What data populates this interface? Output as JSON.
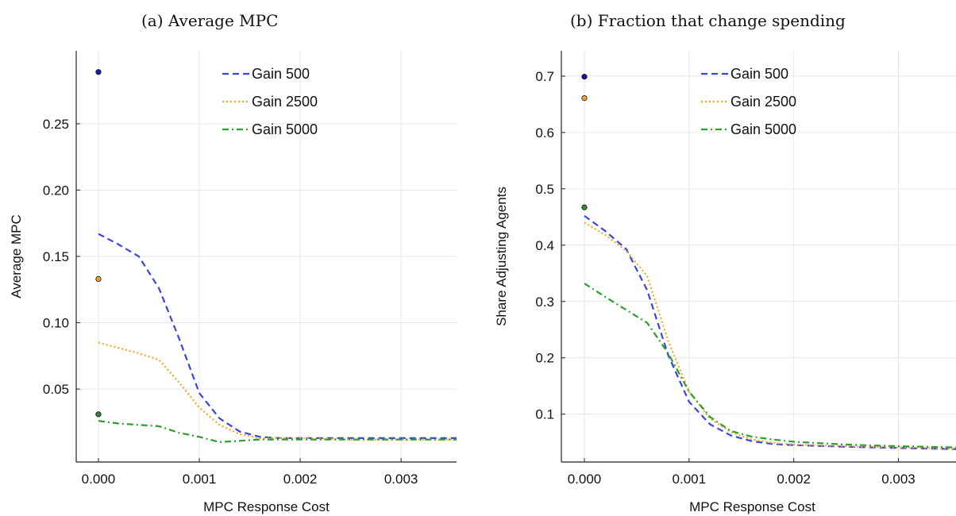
{
  "chart_data": [
    {
      "type": "line",
      "title": "(a) Average MPC",
      "xlabel": "MPC Response Cost",
      "ylabel": "Average MPC",
      "xlim": [
        -0.00022,
        0.00355
      ],
      "ylim": [
        -0.005,
        0.305
      ],
      "xticks": [
        0,
        0.001,
        0.002,
        0.003
      ],
      "xtick_labels": [
        "0.000",
        "0.001",
        "0.002",
        "0.003"
      ],
      "yticks": [
        0.05,
        0.1,
        0.15,
        0.2,
        0.25
      ],
      "ytick_labels": [
        "0.05",
        "0.10",
        "0.15",
        "0.20",
        "0.25"
      ],
      "grid": true,
      "legend": "top-center",
      "series": [
        {
          "name": "Gain 500",
          "color": "#3a45e0",
          "dash": "dashed",
          "x": [
            0,
            0.0002,
            0.0004,
            0.0006,
            0.0008,
            0.001,
            0.0012,
            0.0014,
            0.0016,
            0.0018,
            0.002,
            0.0025,
            0.003,
            0.00355
          ],
          "y": [
            0.167,
            0.159,
            0.15,
            0.126,
            0.088,
            0.047,
            0.028,
            0.018,
            0.014,
            0.013,
            0.013,
            0.013,
            0.013,
            0.013
          ],
          "marker": {
            "x": 0,
            "y": 0.289,
            "color": "#1a1aa0"
          }
        },
        {
          "name": "Gain 2500",
          "color": "#f5a623",
          "dash": "dotted",
          "x": [
            0,
            0.0002,
            0.0004,
            0.0006,
            0.0008,
            0.001,
            0.0012,
            0.0014,
            0.0016,
            0.0018,
            0.002,
            0.0025,
            0.003,
            0.00355
          ],
          "y": [
            0.085,
            0.081,
            0.077,
            0.072,
            0.055,
            0.036,
            0.023,
            0.016,
            0.013,
            0.013,
            0.013,
            0.012,
            0.012,
            0.012
          ],
          "marker": {
            "x": 0,
            "y": 0.133,
            "color": "#f0a030"
          }
        },
        {
          "name": "Gain 5000",
          "color": "#2e9e2e",
          "dash": "dashdot",
          "x": [
            0,
            0.0002,
            0.0004,
            0.0006,
            0.0008,
            0.001,
            0.0012,
            0.0014,
            0.0016,
            0.0018,
            0.002,
            0.0025,
            0.003,
            0.00355
          ],
          "y": [
            0.026,
            0.024,
            0.023,
            0.022,
            0.017,
            0.014,
            0.01,
            0.011,
            0.012,
            0.012,
            0.012,
            0.012,
            0.012,
            0.012
          ],
          "marker": {
            "x": 0,
            "y": 0.031,
            "color": "#2e8b2e"
          }
        }
      ]
    },
    {
      "type": "line",
      "title": "(b) Fraction that change spending",
      "xlabel": "MPC Response Cost",
      "ylabel": "Share Adjusting Agents",
      "xlim": [
        -0.00022,
        0.00355
      ],
      "ylim": [
        0.015,
        0.745
      ],
      "xticks": [
        0,
        0.001,
        0.002,
        0.003
      ],
      "xtick_labels": [
        "0.000",
        "0.001",
        "0.002",
        "0.003"
      ],
      "yticks": [
        0.1,
        0.2,
        0.3,
        0.4,
        0.5,
        0.6,
        0.7
      ],
      "ytick_labels": [
        "0.1",
        "0.2",
        "0.3",
        "0.4",
        "0.5",
        "0.6",
        "0.7"
      ],
      "grid": true,
      "legend": "top-center",
      "series": [
        {
          "name": "Gain 500",
          "color": "#3a45e0",
          "dash": "dashed",
          "x": [
            0,
            0.0002,
            0.0004,
            0.0006,
            0.0008,
            0.001,
            0.0012,
            0.0014,
            0.0016,
            0.0018,
            0.002,
            0.0025,
            0.003,
            0.00355
          ],
          "y": [
            0.452,
            0.425,
            0.393,
            0.32,
            0.205,
            0.122,
            0.082,
            0.062,
            0.052,
            0.047,
            0.045,
            0.042,
            0.04,
            0.038
          ],
          "marker": {
            "x": 0,
            "y": 0.699,
            "color": "#1a1aa0"
          }
        },
        {
          "name": "Gain 2500",
          "color": "#f5a623",
          "dash": "dotted",
          "x": [
            0,
            0.0002,
            0.0004,
            0.0006,
            0.0008,
            0.001,
            0.0012,
            0.0014,
            0.0016,
            0.0018,
            0.002,
            0.0025,
            0.003,
            0.00355
          ],
          "y": [
            0.44,
            0.418,
            0.39,
            0.345,
            0.23,
            0.14,
            0.092,
            0.068,
            0.055,
            0.049,
            0.046,
            0.043,
            0.041,
            0.039
          ],
          "marker": {
            "x": 0,
            "y": 0.661,
            "color": "#f0a030"
          }
        },
        {
          "name": "Gain 5000",
          "color": "#2e9e2e",
          "dash": "dashdot",
          "x": [
            0,
            0.0002,
            0.0004,
            0.0006,
            0.0008,
            0.001,
            0.0012,
            0.0014,
            0.0016,
            0.0018,
            0.002,
            0.0025,
            0.003,
            0.00355
          ],
          "y": [
            0.332,
            0.308,
            0.285,
            0.262,
            0.208,
            0.14,
            0.095,
            0.07,
            0.06,
            0.055,
            0.051,
            0.046,
            0.043,
            0.041
          ],
          "marker": {
            "x": 0,
            "y": 0.467,
            "color": "#2e8b2e"
          }
        }
      ]
    }
  ]
}
